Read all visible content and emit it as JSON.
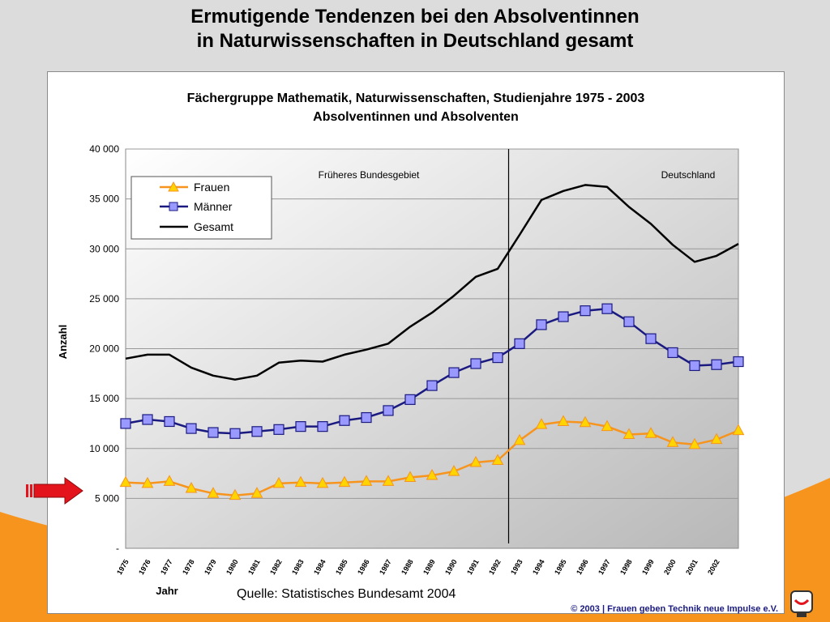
{
  "slide": {
    "title_line1": "Ermutigende Tendenzen bei den Absolventinnen",
    "title_line2": "in Naturwissenschaften in Deutschland gesamt",
    "source": "Quelle: Statistisches Bundesamt 2004",
    "copyright": "© 2003 | Frauen geben Technik neue Impulse e.V.",
    "arrow_icon": "red-arrow-icon",
    "logo_icon": "fgtni-logo-icon"
  },
  "colors": {
    "frauen": "#f7941d",
    "frauen_marker": "#ffd400",
    "maenner": "#1a1a80",
    "maenner_marker": "#9999ff",
    "gesamt": "#000000",
    "accent_orange": "#f7941d",
    "arrow_red": "#e3141b"
  },
  "chart_data": {
    "type": "line",
    "title_line1": "Fächergruppe Mathematik, Naturwissenschaften, Studienjahre 1975 - 2003",
    "title_line2": "Absolventinnen und Absolventen",
    "ylabel": "Anzahl",
    "xlabel": "Jahr",
    "ylim": [
      0,
      40000
    ],
    "y_ticks": [
      0,
      5000,
      10000,
      15000,
      20000,
      25000,
      30000,
      35000,
      40000
    ],
    "y_tick_labels": [
      "-",
      "5 000",
      "10 000",
      "15 000",
      "20 000",
      "25 000",
      "30 000",
      "35 000",
      "40 000"
    ],
    "x": [
      "1975",
      "1976",
      "1977",
      "1978",
      "1979",
      "1980",
      "1981",
      "1982",
      "1983",
      "1984",
      "1985",
      "1986",
      "1987",
      "1988",
      "1989",
      "1990",
      "1991",
      "1992",
      "1993",
      "1994",
      "1995",
      "1996",
      "1997",
      "1998",
      "1999",
      "2000",
      "2001",
      "2002",
      "2003"
    ],
    "x_tick_labels": [
      "1975",
      "1976",
      "1977",
      "1978",
      "1979",
      "1980",
      "1981",
      "1982",
      "1983",
      "1984",
      "1985",
      "1986",
      "1987",
      "1988",
      "1989",
      "1990",
      "1991",
      "1992",
      "1993",
      "1994",
      "1995",
      "1996",
      "1997",
      "1998",
      "1999",
      "2000",
      "2001",
      "2002",
      ""
    ],
    "region_labels": [
      "Früheres Bundesgebiet",
      "Deutschland"
    ],
    "divider_after_index": 17,
    "grid": true,
    "legend_position": "top-left",
    "series": [
      {
        "name": "Frauen",
        "values": [
          6600,
          6500,
          6700,
          6000,
          5500,
          5300,
          5500,
          6500,
          6600,
          6500,
          6600,
          6700,
          6700,
          7100,
          7300,
          7700,
          8600,
          8800,
          10800,
          12400,
          12700,
          12600,
          12200,
          11400,
          11500,
          10600,
          10400,
          10900,
          11800
        ]
      },
      {
        "name": "Männer",
        "values": [
          12500,
          12900,
          12700,
          12000,
          11600,
          11500,
          11700,
          11900,
          12200,
          12200,
          12800,
          13100,
          13800,
          14900,
          16300,
          17600,
          18500,
          19100,
          20500,
          22400,
          23200,
          23800,
          24000,
          22700,
          21000,
          19600,
          18300,
          18400,
          18700
        ]
      },
      {
        "name": "Gesamt",
        "values": [
          19000,
          19400,
          19400,
          18100,
          17300,
          16900,
          17300,
          18600,
          18800,
          18700,
          19400,
          19900,
          20500,
          22200,
          23600,
          25300,
          27200,
          28000,
          31400,
          34900,
          35800,
          36400,
          36200,
          34200,
          32500,
          30400,
          28700,
          29300,
          30500
        ]
      }
    ]
  }
}
